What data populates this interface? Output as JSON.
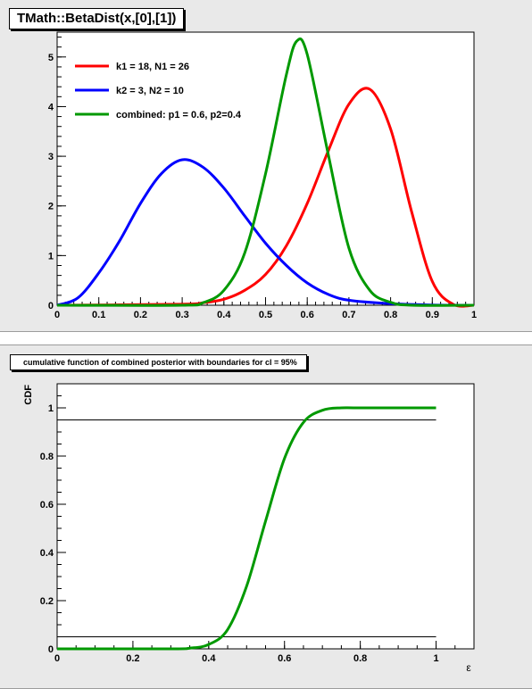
{
  "chart_data": [
    {
      "type": "line",
      "title": "TMath::BetaDist(x,[0],[1])",
      "xlim": [
        0,
        1
      ],
      "ylim": [
        0,
        5.5
      ],
      "xticks": [
        0,
        0.1,
        0.2,
        0.3,
        0.4,
        0.5,
        0.6,
        0.7,
        0.8,
        0.9,
        1
      ],
      "xtick_labels": [
        "0",
        "0.1",
        "0.2",
        "0.3",
        "0.4",
        "0.5",
        "0.6",
        "0.7",
        "0.8",
        "0.9",
        "1"
      ],
      "yticks": [
        0,
        1,
        2,
        3,
        4,
        5
      ],
      "ytick_labels": [
        "0",
        "1",
        "2",
        "3",
        "4",
        "5"
      ],
      "legend": "top-left",
      "series": [
        {
          "name": "k1 = 18, N1 = 26",
          "color": "#ff0000",
          "x": [
            0,
            0.3,
            0.35,
            0.4,
            0.45,
            0.5,
            0.55,
            0.6,
            0.65,
            0.7,
            0.75,
            0.8,
            0.85,
            0.9,
            0.95,
            1
          ],
          "y": [
            0,
            0.02,
            0.05,
            0.12,
            0.3,
            0.62,
            1.2,
            2.05,
            3.1,
            4.05,
            4.35,
            3.55,
            1.9,
            0.48,
            0.02,
            0
          ]
        },
        {
          "name": "k2 = 3, N2 = 10",
          "color": "#0000ff",
          "x": [
            0,
            0.05,
            0.1,
            0.15,
            0.2,
            0.25,
            0.3,
            0.35,
            0.4,
            0.45,
            0.5,
            0.55,
            0.6,
            0.65,
            0.7,
            0.8,
            0.9,
            1
          ],
          "y": [
            0,
            0.15,
            0.65,
            1.3,
            2.05,
            2.65,
            2.93,
            2.78,
            2.36,
            1.8,
            1.25,
            0.8,
            0.45,
            0.22,
            0.1,
            0.03,
            0.005,
            0
          ]
        },
        {
          "name": "combined: p1 = 0.6, p2=0.4",
          "color": "#009900",
          "x": [
            0,
            0.3,
            0.35,
            0.4,
            0.45,
            0.5,
            0.55,
            0.575,
            0.6,
            0.65,
            0.7,
            0.75,
            0.8,
            0.85,
            1
          ],
          "y": [
            0,
            0,
            0.05,
            0.3,
            1.05,
            2.65,
            4.65,
            5.32,
            5.05,
            3.05,
            1.15,
            0.3,
            0.06,
            0,
            0
          ]
        }
      ]
    },
    {
      "type": "line",
      "title": "cumulative function of combined posterior with boundaries for cl = 95%",
      "xlabel": "ε",
      "ylabel": "CDF",
      "xlim": [
        0,
        1.1
      ],
      "ylim": [
        0,
        1.1
      ],
      "xticks": [
        0,
        0.2,
        0.4,
        0.6,
        0.8,
        1
      ],
      "xtick_labels": [
        "0",
        "0.2",
        "0.4",
        "0.6",
        "0.8",
        "1"
      ],
      "yticks": [
        0,
        0.2,
        0.4,
        0.6,
        0.8,
        1
      ],
      "ytick_labels": [
        "0",
        "0.2",
        "0.4",
        "0.6",
        "0.8",
        "1"
      ],
      "boundaries": [
        0.05,
        0.95
      ],
      "series": [
        {
          "name": "",
          "color": "#009900",
          "x": [
            0,
            0.3,
            0.35,
            0.4,
            0.45,
            0.5,
            0.55,
            0.6,
            0.65,
            0.7,
            0.75,
            0.8,
            1
          ],
          "y": [
            0,
            0,
            0.003,
            0.018,
            0.08,
            0.26,
            0.53,
            0.79,
            0.94,
            0.99,
            1.0,
            1.0,
            1.0
          ]
        }
      ]
    }
  ]
}
